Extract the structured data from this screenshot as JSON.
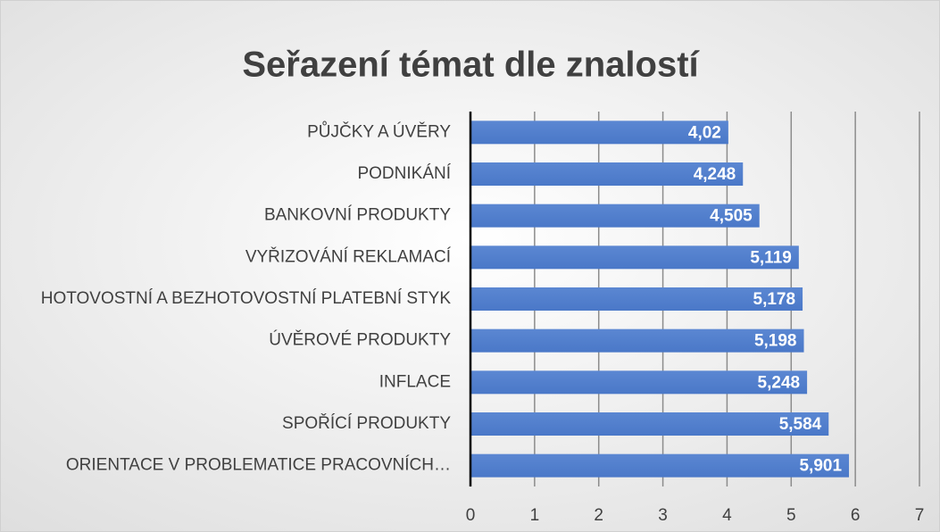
{
  "chart_data": {
    "type": "bar",
    "orientation": "horizontal",
    "title": "Seřazení témat dle znalostí",
    "categories": [
      "PŮJČKY A ÚVĚRY",
      "PODNIKÁNÍ",
      "BANKOVNÍ PRODUKTY",
      "VYŘIZOVÁNÍ REKLAMACÍ",
      "HOTOVOSTNÍ A BEZHOTOVOSTNÍ PLATEBNÍ STYK",
      "ÚVĚROVÉ PRODUKTY",
      "INFLACE",
      "SPOŘÍCÍ PRODUKTY",
      "ORIENTACE V PROBLEMATICE PRACOVNÍCH…"
    ],
    "values": [
      4.02,
      4.248,
      4.505,
      5.119,
      5.178,
      5.198,
      5.248,
      5.584,
      5.901
    ],
    "value_labels": [
      "4,02",
      "4,248",
      "4,505",
      "5,119",
      "5,178",
      "5,198",
      "5,248",
      "5,584",
      "5,901"
    ],
    "color": "#4a78c8",
    "xlim": [
      0,
      7
    ],
    "xticks": [
      0,
      1,
      2,
      3,
      4,
      5,
      6,
      7
    ],
    "grid": true
  }
}
